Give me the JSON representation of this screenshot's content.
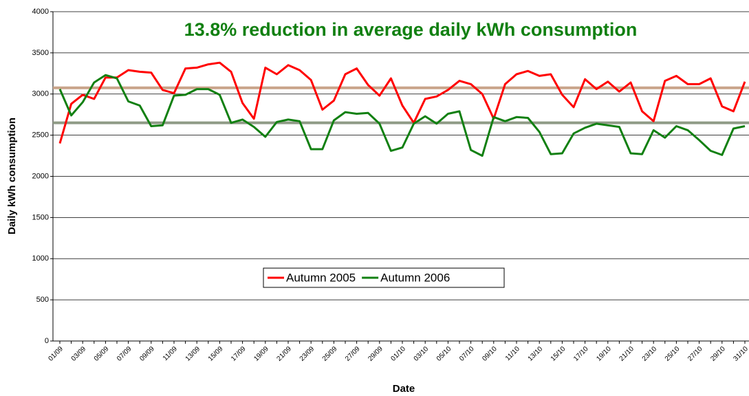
{
  "chart_data": {
    "type": "line",
    "title": "13.8% reduction in average daily kWh consumption",
    "x_label": "Date",
    "y_label": "Daily kWh consumption",
    "categories": [
      "01/09",
      null,
      "03/09",
      null,
      "05/09",
      null,
      "07/09",
      null,
      "09/09",
      null,
      "11/09",
      null,
      "13/09",
      null,
      "15/09",
      null,
      "17/09",
      null,
      "19/09",
      null,
      "21/09",
      null,
      "23/09",
      null,
      "25/09",
      null,
      "27/09",
      null,
      "29/09",
      null,
      "01/10",
      null,
      "03/10",
      null,
      "05/10",
      null,
      "07/10",
      null,
      "09/10",
      null,
      "11/10",
      null,
      "13/10",
      null,
      "15/10",
      null,
      "17/10",
      null,
      "19/10",
      null,
      "21/10",
      null,
      "23/10",
      null,
      "25/10",
      null,
      "27/10",
      null,
      "29/10",
      null,
      "31/10"
    ],
    "series": [
      {
        "name": "Autumn 2005",
        "color": "#ff0000",
        "values": [
          2400,
          2880,
          2990,
          2940,
          3200,
          3200,
          3290,
          3270,
          3260,
          3050,
          3010,
          3310,
          3320,
          3360,
          3380,
          3270,
          2890,
          2700,
          3320,
          3240,
          3350,
          3290,
          3170,
          2810,
          2920,
          3240,
          3310,
          3110,
          2980,
          3190,
          2860,
          2650,
          2940,
          2970,
          3050,
          3160,
          3120,
          3000,
          2700,
          3120,
          3240,
          3280,
          3220,
          3240,
          2990,
          2840,
          3180,
          3060,
          3150,
          3030,
          3140,
          2790,
          2670,
          3160,
          3220,
          3120,
          3120,
          3190,
          2850,
          2790,
          3150
        ]
      },
      {
        "name": "Autumn 2006",
        "color": "#128012",
        "values": [
          3060,
          2740,
          2900,
          3140,
          3230,
          3190,
          2910,
          2860,
          2610,
          2620,
          2980,
          2990,
          3060,
          3060,
          2990,
          2650,
          2690,
          2600,
          2480,
          2660,
          2690,
          2670,
          2330,
          2330,
          2680,
          2780,
          2760,
          2770,
          2640,
          2310,
          2350,
          2640,
          2730,
          2640,
          2760,
          2790,
          2320,
          2250,
          2720,
          2670,
          2720,
          2710,
          2540,
          2270,
          2280,
          2520,
          2590,
          2640,
          2620,
          2600,
          2280,
          2270,
          2560,
          2470,
          2610,
          2560,
          2440,
          2310,
          2260,
          2580,
          2610
        ]
      }
    ],
    "averages": [
      {
        "value": 3075,
        "color": "#c9a48a"
      },
      {
        "value": 2650,
        "color": "#8f9b86"
      }
    ],
    "ylim": [
      0,
      4000
    ],
    "yticks": [
      0,
      500,
      1000,
      1500,
      2000,
      2500,
      3000,
      3500,
      4000
    ],
    "grid": true,
    "legend": "center",
    "title_color": "#128012"
  }
}
